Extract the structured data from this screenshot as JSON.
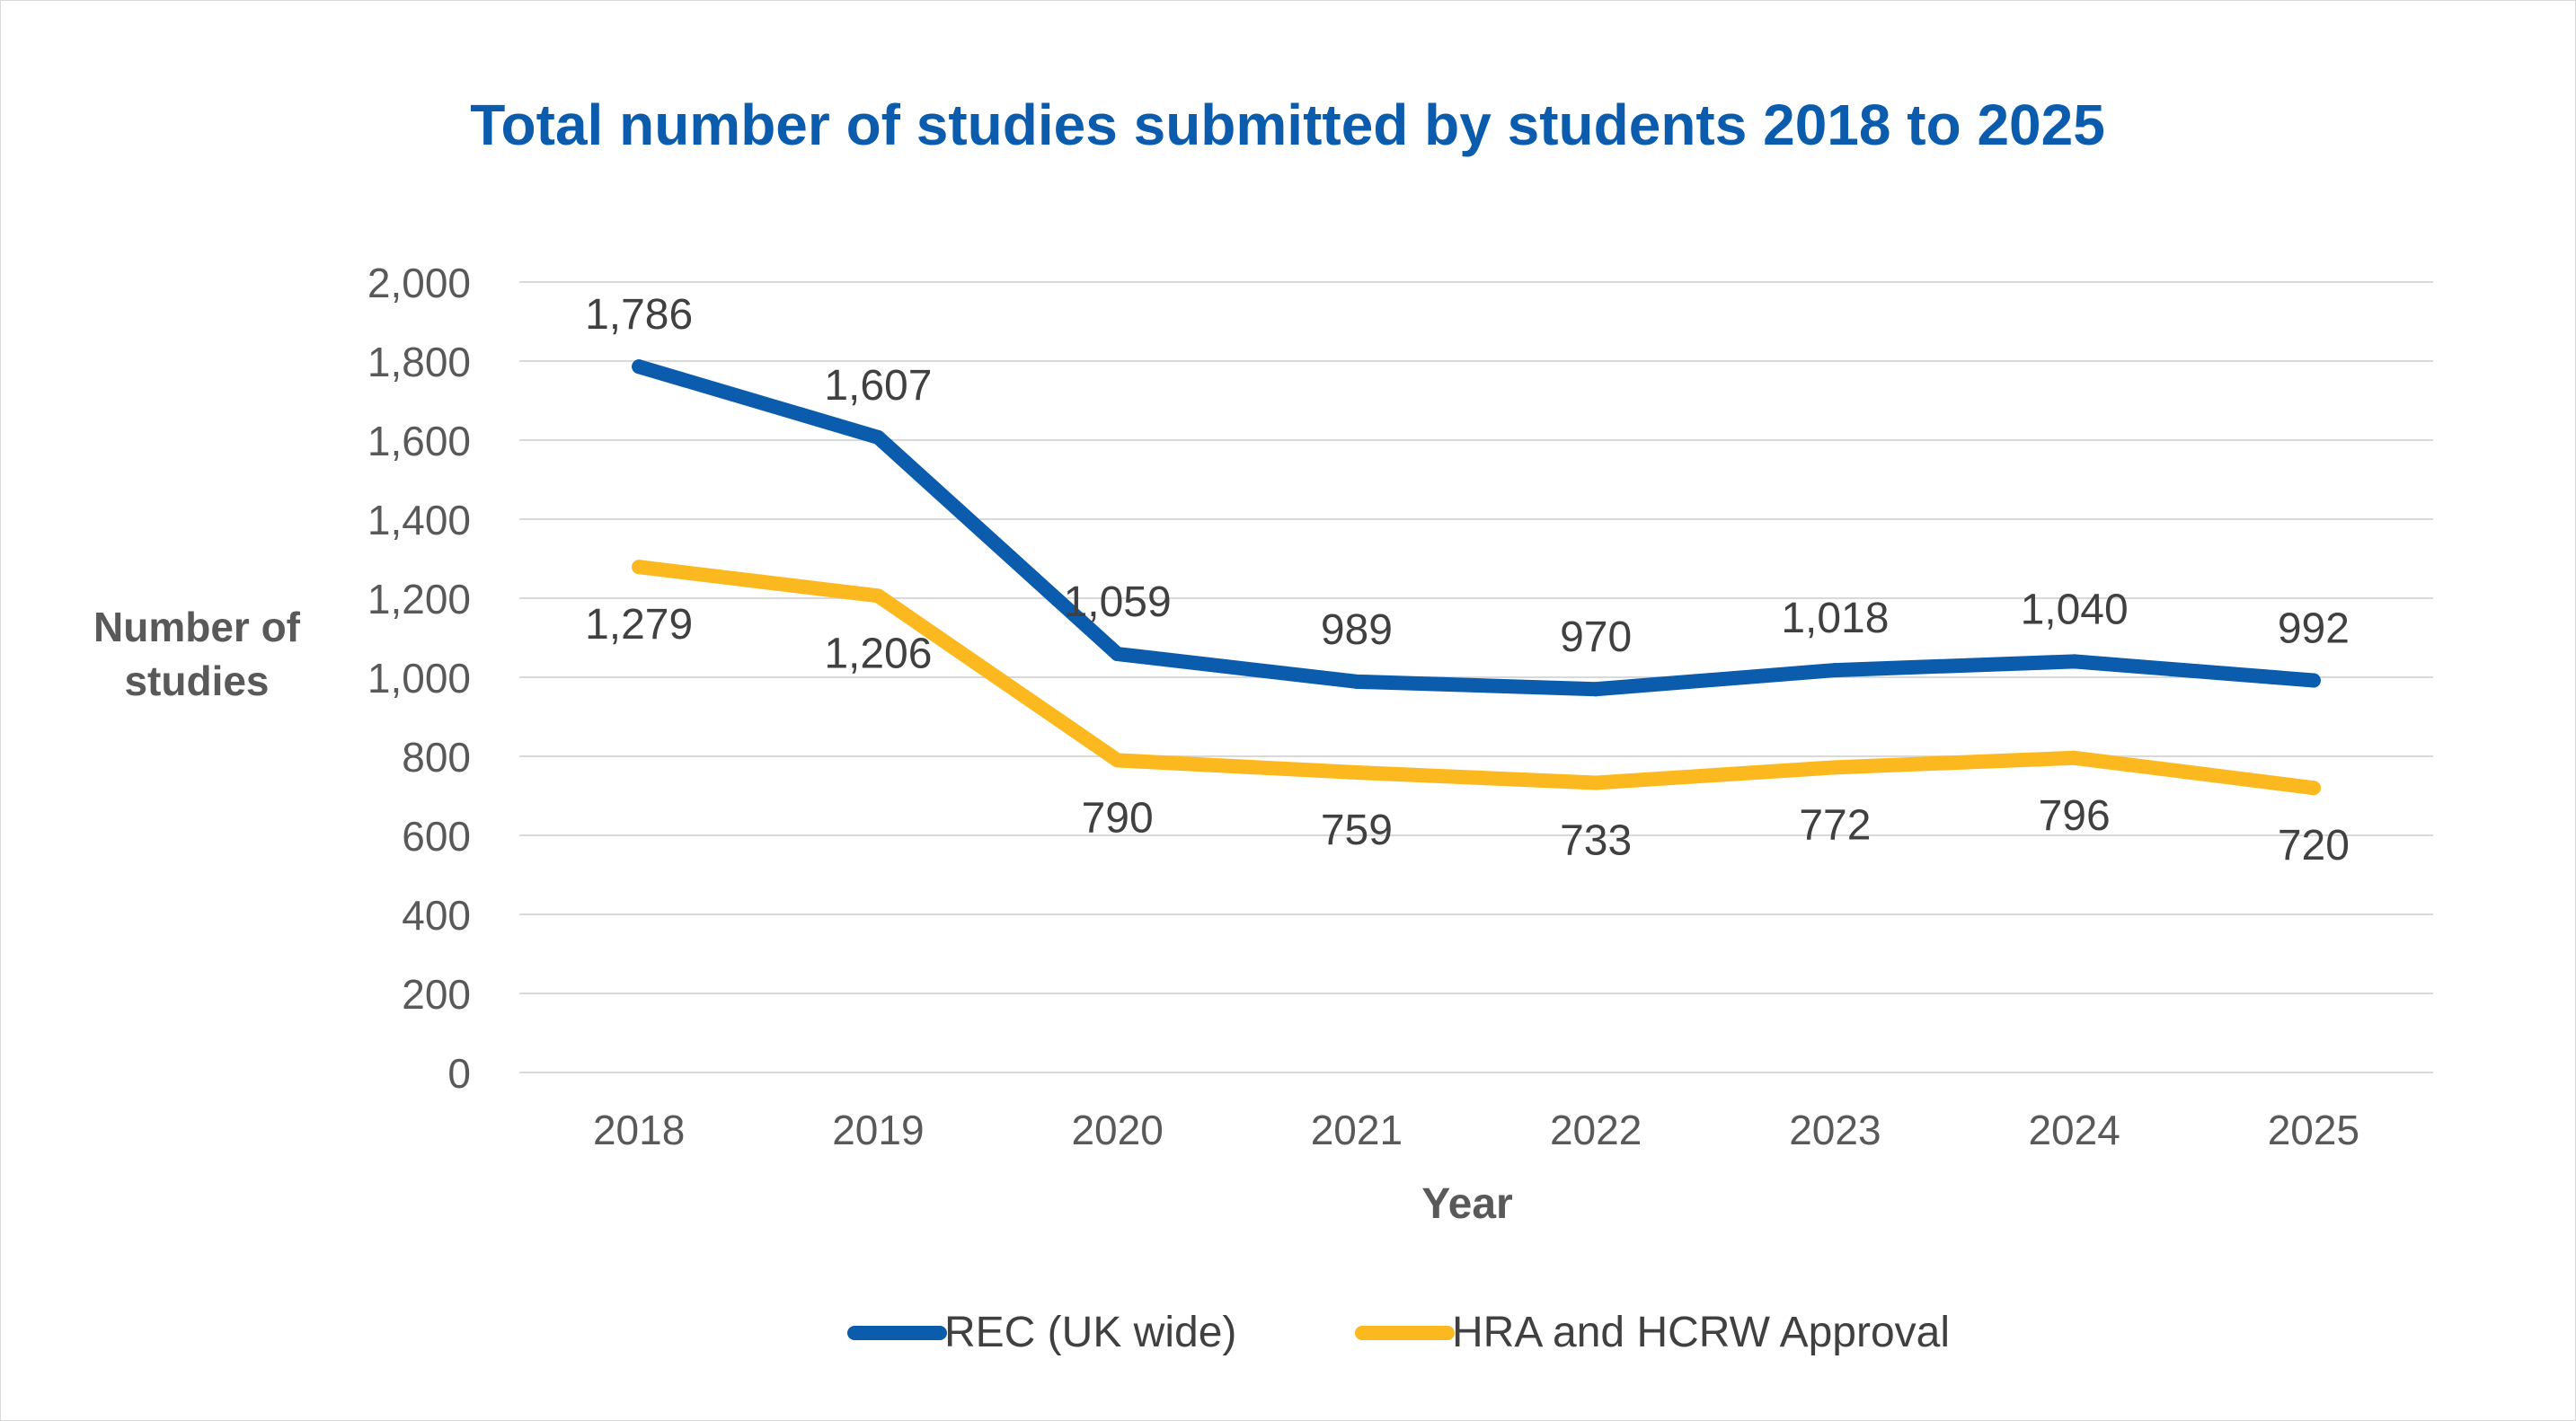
{
  "chart_data": {
    "type": "line",
    "title": "Total number of studies submitted by students 2018 to 2025",
    "xlabel": "Year",
    "ylabel_lines": [
      "Number of",
      "studies"
    ],
    "categories": [
      "2018",
      "2019",
      "2020",
      "2021",
      "2022",
      "2023",
      "2024",
      "2025"
    ],
    "ylim": [
      0,
      2000
    ],
    "ytick_values": [
      0,
      200,
      400,
      600,
      800,
      1000,
      1200,
      1400,
      1600,
      1800,
      2000
    ],
    "ytick_labels": [
      "0",
      "200",
      "400",
      "600",
      "800",
      "1,000",
      "1,200",
      "1,400",
      "1,600",
      "1,800",
      "2,000"
    ],
    "grid": true,
    "legend_position": "bottom",
    "series": [
      {
        "name": "REC (UK wide)",
        "color": "#0b5cad",
        "values": [
          1786,
          1607,
          1059,
          989,
          970,
          1018,
          1040,
          992
        ],
        "labels": [
          "1,786",
          "1,607",
          "1,059",
          "989",
          "970",
          "1,018",
          "1,040",
          "992"
        ],
        "label_position": "above"
      },
      {
        "name": "HRA and HCRW Approval",
        "color": "#fbb91f",
        "values": [
          1279,
          1206,
          790,
          759,
          733,
          772,
          796,
          720
        ],
        "labels": [
          "1,279",
          "1,206",
          "790",
          "759",
          "733",
          "772",
          "796",
          "720"
        ],
        "label_position": "below"
      }
    ]
  }
}
